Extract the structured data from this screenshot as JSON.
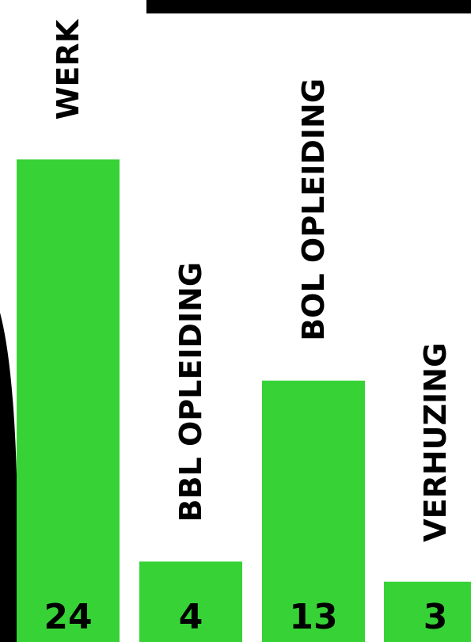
{
  "chart_data": {
    "type": "bar",
    "categories": [
      "WERK",
      "BBL OPLEIDING",
      "BOL OPLEIDING",
      "VERHUZING"
    ],
    "values": [
      24,
      4,
      13,
      3
    ],
    "data_labels": [
      "24",
      "4",
      "13",
      "3"
    ],
    "ylim": [
      0,
      30
    ],
    "grid": false,
    "legend": "none",
    "label_orientation": "vertical",
    "bar_color": "#37d336",
    "text_color": "#000000",
    "decoration_color": "#000000"
  }
}
